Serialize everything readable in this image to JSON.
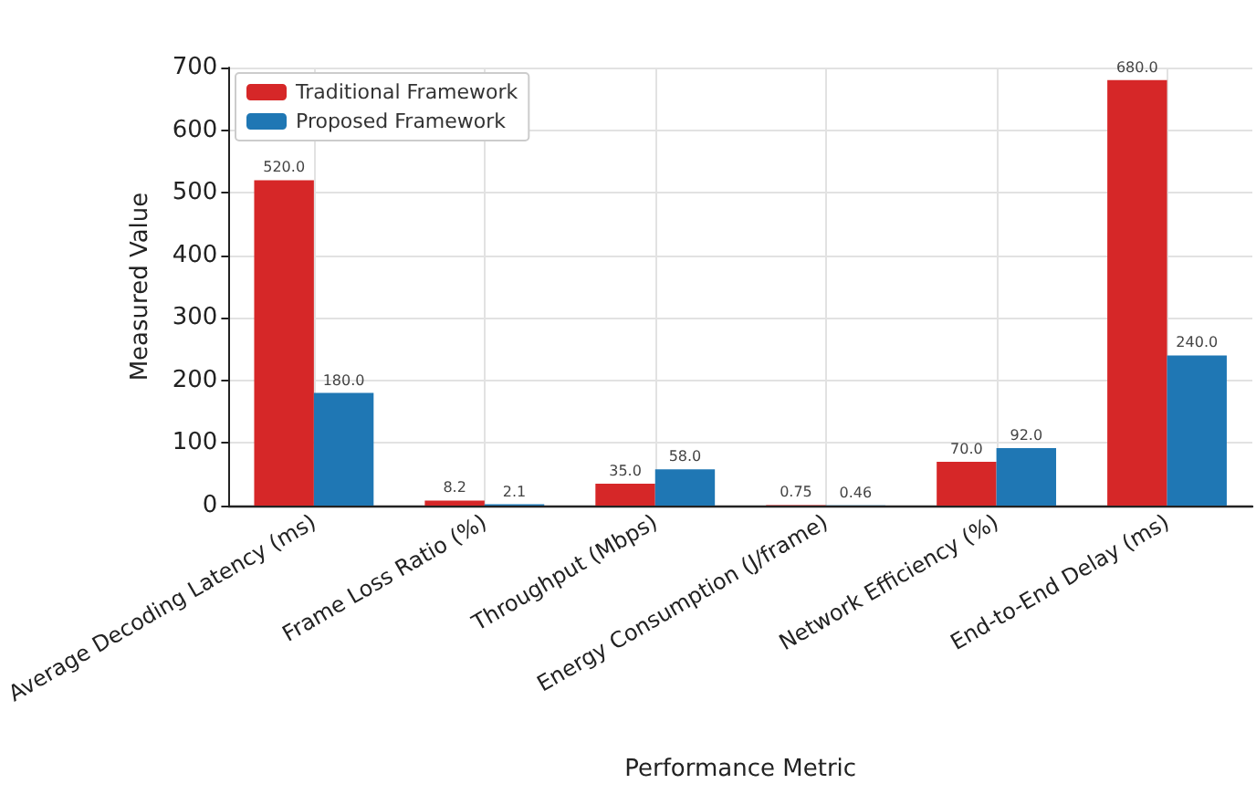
{
  "chart_data": {
    "type": "bar",
    "xlabel": "Performance Metric",
    "ylabel": "Measured Value",
    "categories": [
      "Average Decoding Latency (ms)",
      "Frame Loss Ratio (%)",
      "Throughput (Mbps)",
      "Energy Consumption (J/frame)",
      "Network Efficiency (%)",
      "End-to-End Delay (ms)"
    ],
    "series": [
      {
        "name": "Traditional Framework",
        "color": "#d62728",
        "values": [
          520,
          8.2,
          35,
          0.75,
          70,
          680
        ],
        "value_labels": [
          "520.0",
          "8.2",
          "35.0",
          "0.75",
          "70.0",
          "680.0"
        ]
      },
      {
        "name": "Proposed Framework",
        "color": "#1f77b4",
        "values": [
          180,
          2.1,
          58,
          0.46,
          92,
          240
        ],
        "value_labels": [
          "180.0",
          "2.1",
          "58.0",
          "0.46",
          "92.0",
          "240.0"
        ]
      }
    ],
    "ylim": [
      0,
      700
    ],
    "yticks": [
      0,
      100,
      200,
      300,
      400,
      500,
      600,
      700
    ],
    "grid": true,
    "legend": "top left"
  }
}
